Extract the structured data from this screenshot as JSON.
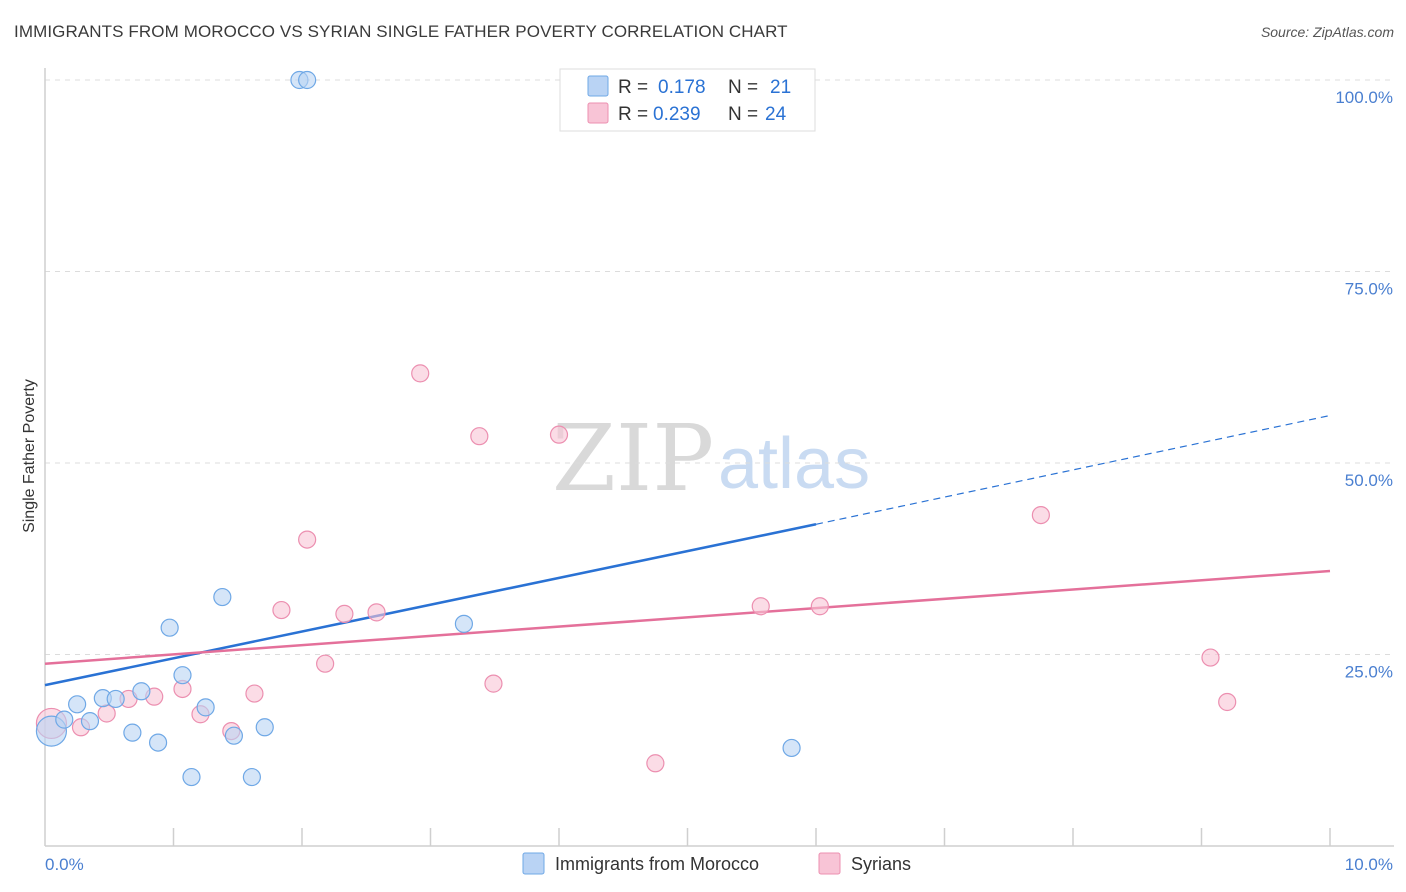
{
  "title": "IMMIGRANTS FROM MOROCCO VS SYRIAN SINGLE FATHER POVERTY CORRELATION CHART",
  "source": "Source: ZipAtlas.com",
  "watermark": {
    "zip": "ZIP",
    "atlas": "atlas"
  },
  "colors": {
    "blue": "#6fa8e6",
    "blue_fill": "#b9d3f4",
    "blue_line": "#2a72d4",
    "pink": "#ec8fb0",
    "pink_fill": "#f8c4d6",
    "pink_line": "#e4709a",
    "axis_text": "#4a7fd0"
  },
  "legend_box": {
    "rows": [
      {
        "r_label": "R =",
        "r_value": "0.178",
        "n_label": "N =",
        "n_value": "21"
      },
      {
        "r_label": "R =",
        "r_value": "0.239",
        "n_label": "N =",
        "n_value": "24"
      }
    ]
  },
  "chart_data": {
    "type": "scatter",
    "title": "IMMIGRANTS FROM MOROCCO VS SYRIAN SINGLE FATHER POVERTY CORRELATION CHART",
    "xlabel": "",
    "ylabel": "Single Father Poverty",
    "xlim": [
      0,
      10
    ],
    "ylim": [
      0,
      100
    ],
    "x_tick_labels": {
      "min": "0.0%",
      "max": "10.0%"
    },
    "y_ticks": [
      {
        "value": 100,
        "label": "100.0%"
      },
      {
        "value": 75,
        "label": "75.0%"
      },
      {
        "value": 50,
        "label": "50.0%"
      },
      {
        "value": 25,
        "label": "25.0%"
      }
    ],
    "grid": true,
    "legend": "bottom-center",
    "series": [
      {
        "name": "Immigrants from Morocco",
        "color": "blue",
        "points": [
          {
            "x": 0.05,
            "y": 15.0,
            "big": true
          },
          {
            "x": 0.15,
            "y": 16.5
          },
          {
            "x": 0.25,
            "y": 18.5
          },
          {
            "x": 0.35,
            "y": 16.3
          },
          {
            "x": 0.45,
            "y": 19.3
          },
          {
            "x": 0.55,
            "y": 19.2
          },
          {
            "x": 0.68,
            "y": 14.8
          },
          {
            "x": 0.75,
            "y": 20.2
          },
          {
            "x": 0.88,
            "y": 13.5
          },
          {
            "x": 0.97,
            "y": 28.5
          },
          {
            "x": 1.07,
            "y": 22.3
          },
          {
            "x": 1.14,
            "y": 9.0
          },
          {
            "x": 1.25,
            "y": 18.1
          },
          {
            "x": 1.38,
            "y": 32.5
          },
          {
            "x": 1.47,
            "y": 14.4
          },
          {
            "x": 1.61,
            "y": 9.0
          },
          {
            "x": 1.71,
            "y": 15.5
          },
          {
            "x": 1.98,
            "y": 100.0
          },
          {
            "x": 2.04,
            "y": 100.0
          },
          {
            "x": 3.26,
            "y": 29.0
          },
          {
            "x": 5.81,
            "y": 12.8
          }
        ],
        "trend": {
          "x0": 0,
          "y0": 21.0,
          "x1": 6.0,
          "y1": 42.0,
          "dash_x1": 10.0,
          "dash_y1": 56.2
        }
      },
      {
        "name": "Syrians",
        "color": "pink",
        "points": [
          {
            "x": 0.05,
            "y": 16.0,
            "big": true
          },
          {
            "x": 0.28,
            "y": 15.5
          },
          {
            "x": 0.48,
            "y": 17.3
          },
          {
            "x": 0.65,
            "y": 19.2
          },
          {
            "x": 0.85,
            "y": 19.5
          },
          {
            "x": 1.07,
            "y": 20.5
          },
          {
            "x": 1.21,
            "y": 17.2
          },
          {
            "x": 1.45,
            "y": 15.0
          },
          {
            "x": 1.63,
            "y": 19.9
          },
          {
            "x": 1.84,
            "y": 30.8
          },
          {
            "x": 2.04,
            "y": 40.0
          },
          {
            "x": 2.18,
            "y": 23.8
          },
          {
            "x": 2.33,
            "y": 30.3
          },
          {
            "x": 2.58,
            "y": 30.5
          },
          {
            "x": 2.92,
            "y": 61.7
          },
          {
            "x": 3.38,
            "y": 53.5
          },
          {
            "x": 3.49,
            "y": 21.2
          },
          {
            "x": 4.0,
            "y": 53.7
          },
          {
            "x": 4.75,
            "y": 10.8
          },
          {
            "x": 5.57,
            "y": 31.3
          },
          {
            "x": 6.03,
            "y": 31.3
          },
          {
            "x": 7.75,
            "y": 43.2
          },
          {
            "x": 9.07,
            "y": 24.6
          },
          {
            "x": 9.2,
            "y": 18.8
          }
        ],
        "trend": {
          "x0": 0,
          "y0": 23.8,
          "x1": 10.0,
          "y1": 35.9
        }
      }
    ]
  }
}
